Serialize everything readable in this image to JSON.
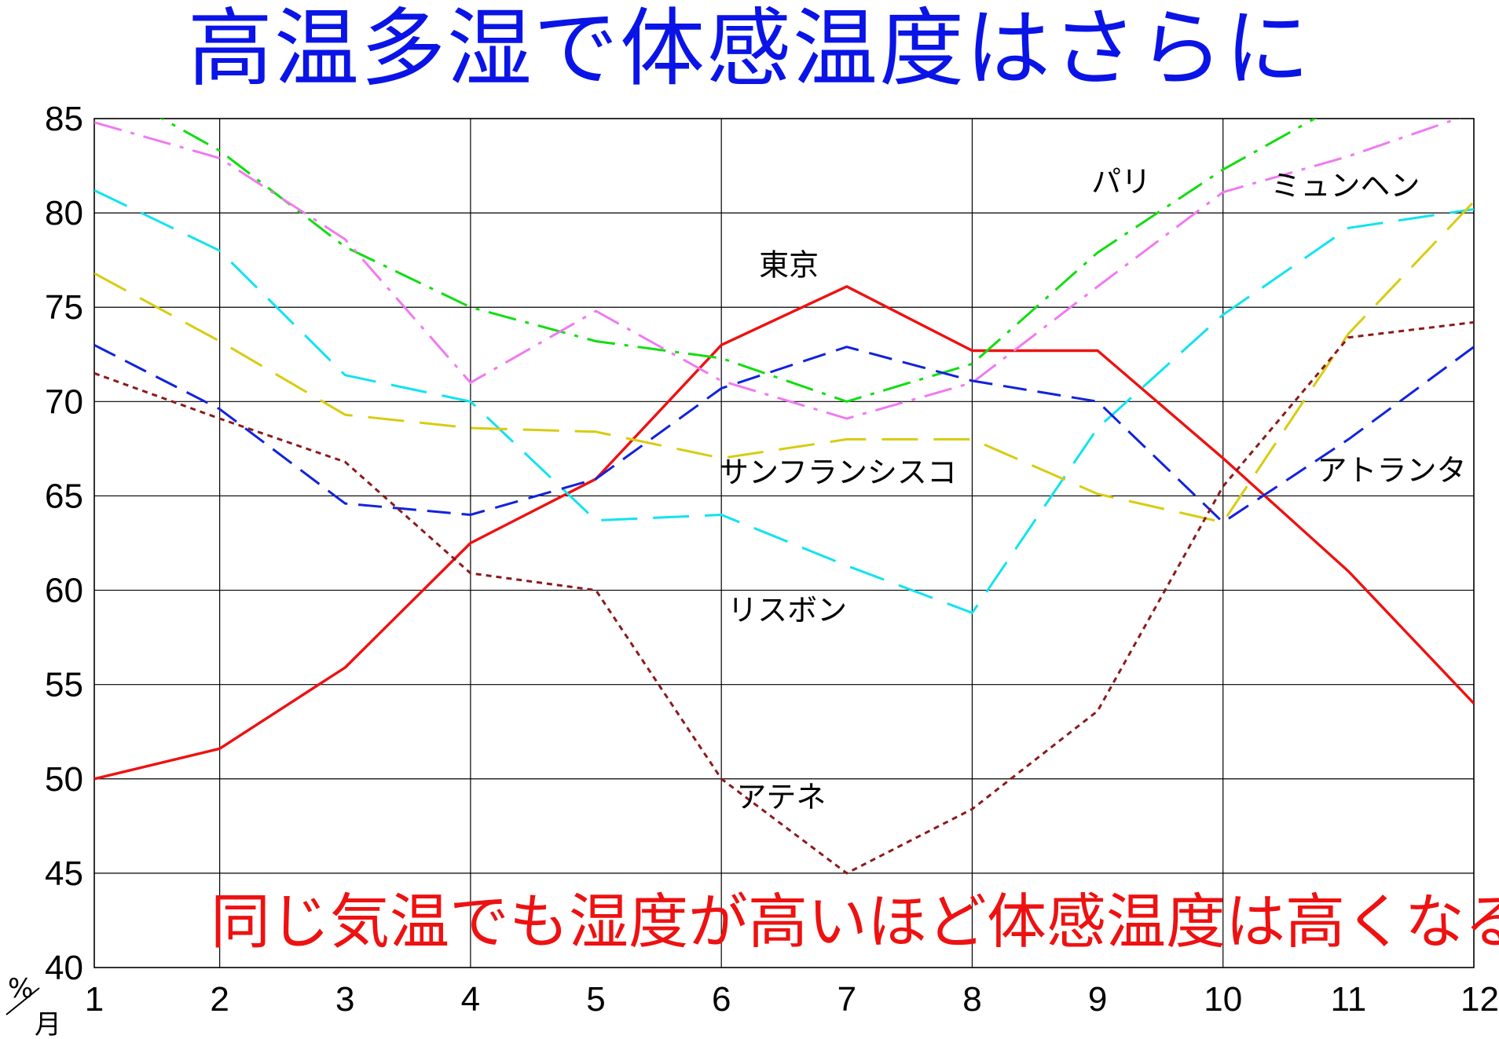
{
  "chart_data": {
    "type": "line",
    "title": "高温多湿で体感温度はさらに",
    "annotation": "同じ気温でも湿度が高いほど体感温度は高くなる",
    "y_unit": "%",
    "x_unit": "月",
    "xlim": [
      1,
      12
    ],
    "ylim": [
      40,
      85
    ],
    "x_ticks": [
      1,
      2,
      3,
      4,
      5,
      6,
      7,
      8,
      9,
      10,
      11,
      12
    ],
    "y_ticks": [
      40,
      45,
      50,
      55,
      60,
      65,
      70,
      75,
      80,
      85
    ],
    "grid": true,
    "x": [
      1,
      2,
      3,
      4,
      5,
      6,
      7,
      8,
      9,
      10,
      11,
      12
    ],
    "series": [
      {
        "name": "東京",
        "color": "#ee1111",
        "dash": "solid",
        "values": [
          50,
          51.6,
          55.9,
          62.5,
          65.9,
          73,
          76.1,
          72.7,
          72.7,
          67,
          61,
          54
        ]
      },
      {
        "name": "パリ",
        "color": "#11dd11",
        "dash": "dashdot",
        "values": [
          87,
          83.3,
          78.2,
          75,
          73.2,
          72.3,
          70,
          72,
          77.9,
          82.3,
          86,
          88
        ]
      },
      {
        "name": "ミュンヘン",
        "color": "#f07af0",
        "dash": "dashdot",
        "values": [
          84.8,
          82.9,
          78.6,
          71,
          74.8,
          71.1,
          69.1,
          71,
          76.1,
          81.1,
          83,
          85.3
        ]
      },
      {
        "name": "リスボン",
        "color": "#11e3ef",
        "dash": "longdash",
        "values": [
          81.2,
          78,
          71.4,
          70,
          63.7,
          64,
          61.3,
          58.8,
          68.6,
          74.6,
          79.2,
          80.2
        ]
      },
      {
        "name": "サンフランシスコ",
        "color": "#d8cc11",
        "dash": "longdash",
        "values": [
          76.8,
          73.2,
          69.3,
          68.6,
          68.4,
          67,
          68,
          68,
          65.1,
          63.6,
          73.6,
          80.6
        ]
      },
      {
        "name": "アトランタ",
        "color": "#1122dd",
        "dash": "dash",
        "values": [
          73,
          69.6,
          64.6,
          64,
          65.9,
          70.7,
          72.9,
          71.1,
          70,
          63.6,
          68,
          72.9
        ]
      },
      {
        "name": "アテネ",
        "color": "#8b1a1a",
        "dash": "dot",
        "values": [
          71.5,
          69.1,
          66.8,
          60.9,
          60,
          50,
          45,
          48.4,
          53.6,
          65.5,
          73.4,
          74.2
        ]
      }
    ],
    "labels": [
      {
        "series": "東京",
        "text": "東京",
        "x": 6.3,
        "y": 76.7
      },
      {
        "series": "パリ",
        "text": "パリ",
        "x": 8.95,
        "y": 81.1
      },
      {
        "series": "ミュンヘン",
        "text": "ミュンヘン",
        "x": 10.38,
        "y": 80.9
      },
      {
        "series": "リスボン",
        "text": "リスボン",
        "x": 6.05,
        "y": 58.4
      },
      {
        "series": "サンフランシスコ",
        "text": "サンフランシスコ",
        "x": 5.98,
        "y": 65.7
      },
      {
        "series": "アトランタ",
        "text": "アトランタ",
        "x": 10.75,
        "y": 65.8
      },
      {
        "series": "アテネ",
        "text": "アテネ",
        "x": 6.12,
        "y": 48.5
      }
    ]
  }
}
